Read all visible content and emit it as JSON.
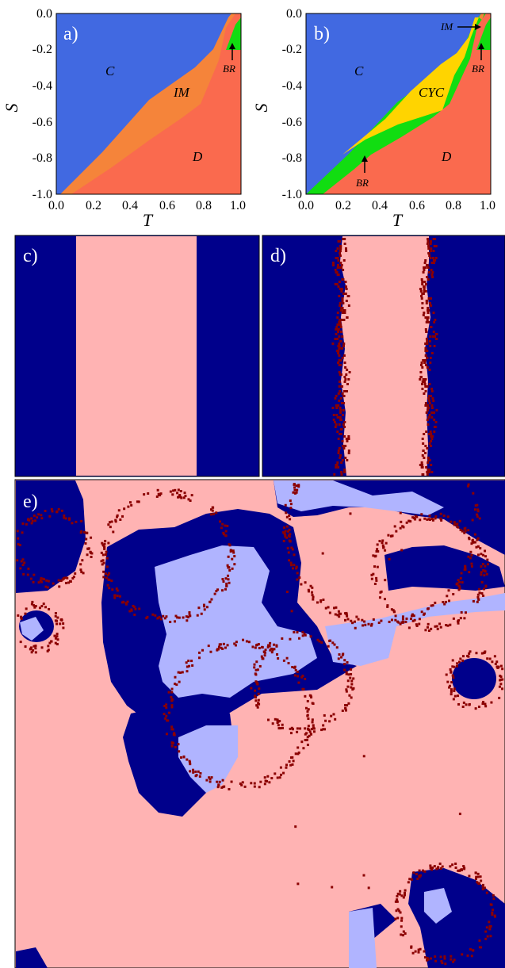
{
  "chart_data": [
    {
      "type": "area",
      "panel": "a)",
      "xlabel": "T",
      "ylabel": "S",
      "xlim": [
        0.0,
        1.0
      ],
      "ylim": [
        -1.0,
        0.0
      ],
      "xticks": [
        "0.0",
        "0.2",
        "0.4",
        "0.6",
        "0.8",
        "1.0"
      ],
      "yticks": [
        "0.0",
        "-0.2",
        "-0.4",
        "-0.6",
        "-0.8",
        "-1.0"
      ],
      "regions": [
        {
          "label": "C",
          "color": "#4169e1",
          "at": [
            0.3,
            -0.3
          ]
        },
        {
          "label": "IM",
          "color": "#f5843a",
          "at": [
            0.68,
            -0.42
          ]
        },
        {
          "label": "D",
          "color": "#fa6a4e",
          "at": [
            0.77,
            -0.82
          ]
        },
        {
          "label": "BR",
          "color": "#11dd11",
          "at": [
            0.95,
            -0.3
          ]
        }
      ],
      "boundaries": {
        "C_upper": [
          [
            0.02,
            -1.0
          ],
          [
            0.25,
            -0.77
          ],
          [
            0.5,
            -0.52
          ],
          [
            0.75,
            -0.3
          ],
          [
            0.85,
            -0.2
          ],
          [
            0.93,
            -0.02
          ],
          [
            0.95,
            0.0
          ]
        ],
        "D_lower": [
          [
            0.08,
            -1.0
          ],
          [
            0.3,
            -0.85
          ],
          [
            0.5,
            -0.7
          ],
          [
            0.68,
            -0.58
          ],
          [
            0.78,
            -0.5
          ],
          [
            0.88,
            -0.26
          ],
          [
            0.92,
            -0.08
          ],
          [
            0.97,
            0.0
          ]
        ],
        "BR_region": [
          [
            0.92,
            -0.2
          ],
          [
            0.97,
            -0.06
          ],
          [
            1.0,
            -0.02
          ],
          [
            1.0,
            -0.2
          ]
        ]
      }
    },
    {
      "type": "area",
      "panel": "b)",
      "xlabel": "T",
      "ylabel": "S",
      "xlim": [
        0.0,
        1.0
      ],
      "ylim": [
        -1.0,
        0.0
      ],
      "xticks": [
        "0.0",
        "0.2",
        "0.4",
        "0.6",
        "0.8",
        "1.0"
      ],
      "yticks": [
        "0.0",
        "-0.2",
        "-0.4",
        "-0.6",
        "-0.8",
        "-1.0"
      ],
      "regions": [
        {
          "label": "C",
          "color": "#4169e1",
          "at": [
            0.3,
            -0.3
          ]
        },
        {
          "label": "CYC",
          "color": "#ffd400",
          "at": [
            0.72,
            -0.42
          ]
        },
        {
          "label": "D",
          "color": "#fa6a4e",
          "at": [
            0.77,
            -0.82
          ]
        },
        {
          "label": "BR",
          "color": "#11dd11",
          "at": [
            0.32,
            -0.88
          ]
        },
        {
          "label": "BR",
          "color": "#11dd11",
          "at": [
            0.95,
            -0.3
          ]
        },
        {
          "label": "IM",
          "color": "#f5843a",
          "at": [
            0.9,
            -0.08
          ]
        }
      ]
    },
    {
      "type": "heatmap",
      "panel": "c)",
      "description_colors": {
        "dark": "#00008b",
        "pink": "#ffb3b3"
      }
    },
    {
      "type": "heatmap",
      "panel": "d)",
      "description_colors": {
        "dark": "#00008b",
        "pink": "#ffb3b3",
        "maroon": "#8b0000"
      }
    },
    {
      "type": "heatmap",
      "panel": "e)",
      "description_colors": {
        "dark": "#00008b",
        "pink": "#ffb3b3",
        "maroon": "#8b0000",
        "lavender": "#b0b4ff"
      }
    }
  ],
  "labels": {
    "a": "a)",
    "b": "b)",
    "c": "c)",
    "d": "d)",
    "e": "e)",
    "T": "T",
    "S": "S",
    "C": "C",
    "IM": "IM",
    "D": "D",
    "BR": "BR",
    "CYC": "CYC"
  },
  "ticks": {
    "x": [
      "0.0",
      "0.2",
      "0.4",
      "0.6",
      "0.8",
      "1.0"
    ],
    "y": [
      "0.0",
      "-0.2",
      "-0.4",
      "-0.6",
      "-0.8",
      "-1.0"
    ]
  }
}
